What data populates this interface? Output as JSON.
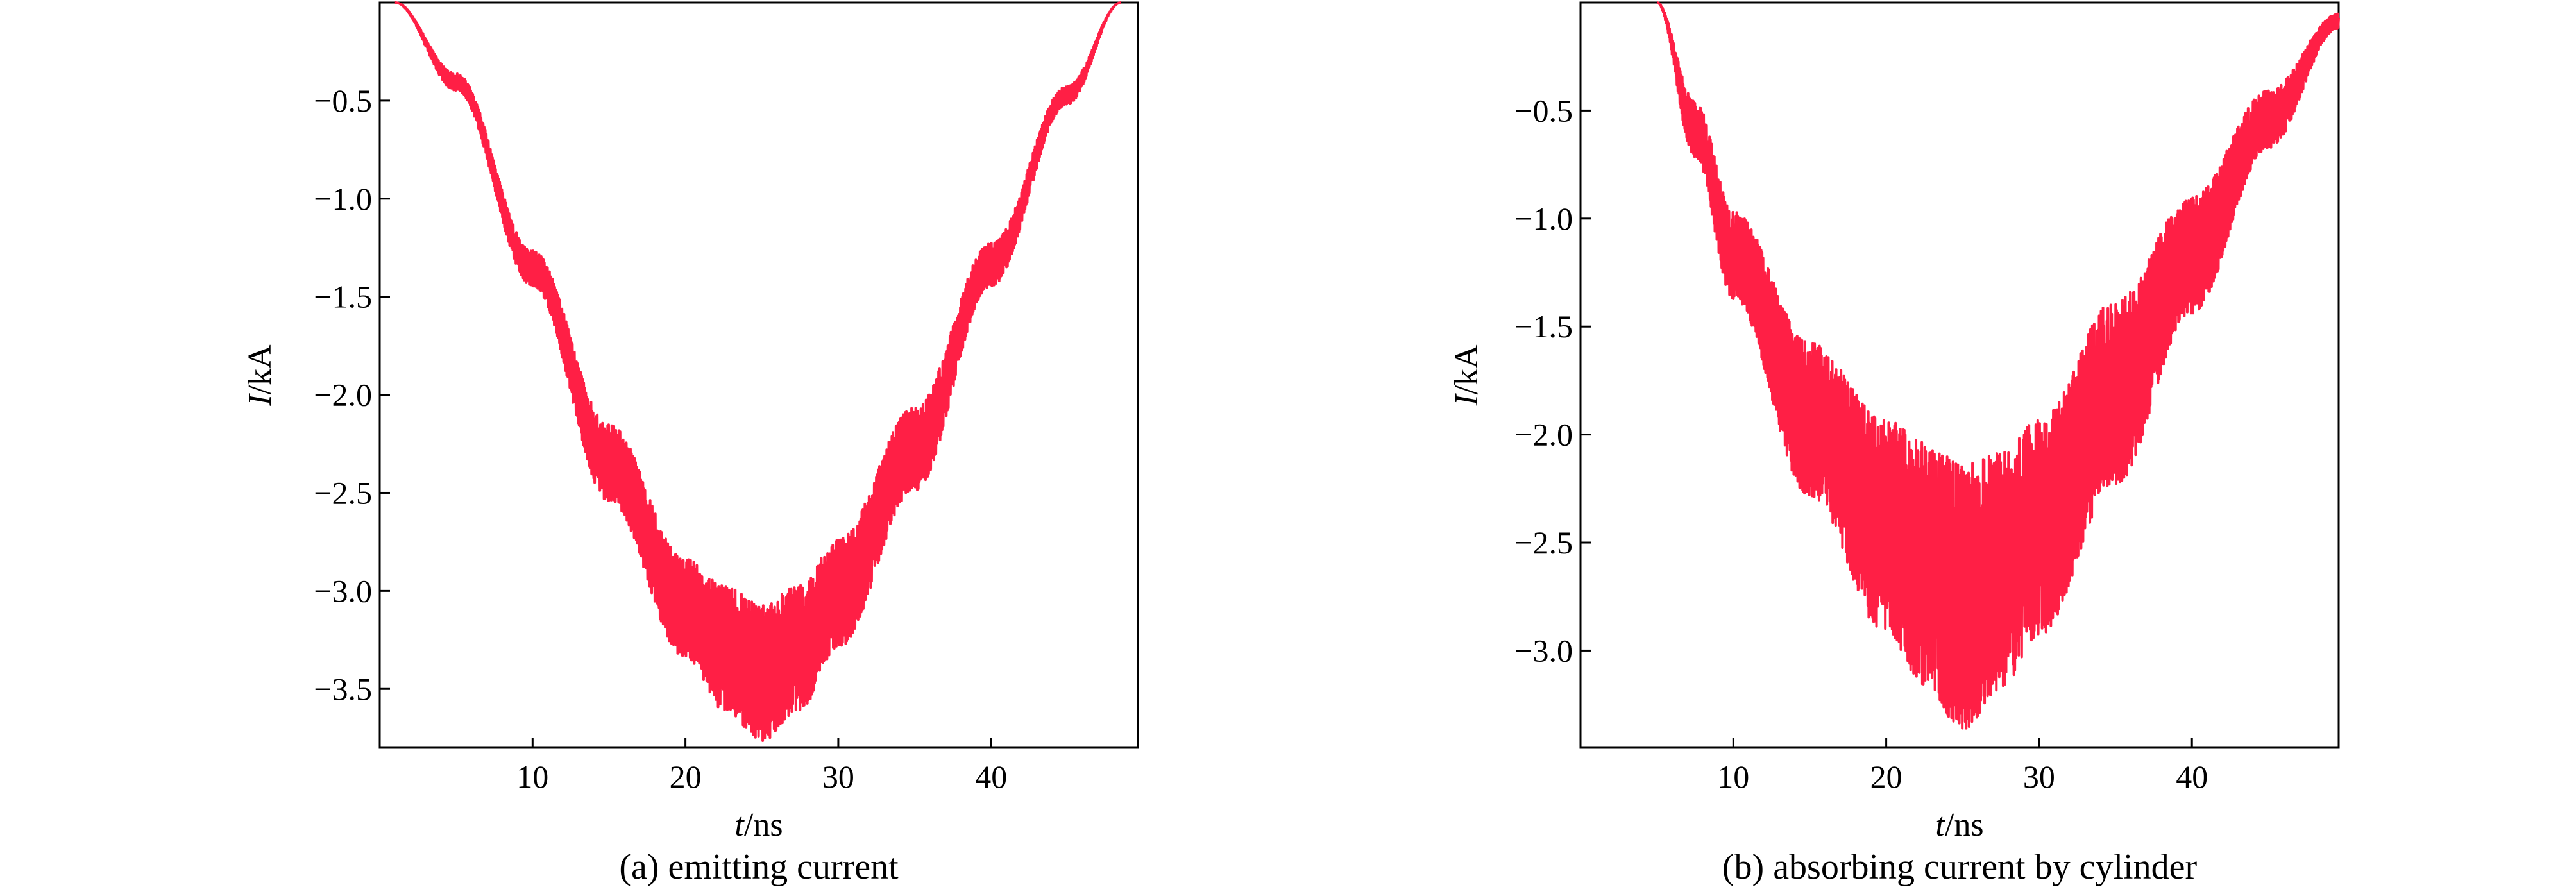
{
  "chart_data": [
    {
      "type": "line",
      "caption": "(a) emitting current",
      "xlabel_var": "t",
      "xlabel_unit": "/ns",
      "ylabel_var": "I",
      "ylabel_unit": "/kA",
      "xlim": [
        0,
        49.6
      ],
      "ylim": [
        -3.8,
        0
      ],
      "xticks": [
        10,
        20,
        30,
        40
      ],
      "yticks": [
        -0.5,
        -1.0,
        -1.5,
        -2.0,
        -2.5,
        -3.0,
        -3.5
      ],
      "ytick_labels": [
        "−0.5",
        "−1.0",
        "−1.5",
        "−2.0",
        "−2.5",
        "−3.0",
        "−3.5"
      ],
      "color": "#ff1f45",
      "series": [
        {
          "x": [
            1.0,
            5.0,
            10.0,
            15.0,
            20.0,
            22.5,
            25.0,
            27.5,
            30.0,
            35.0,
            40.0,
            45.0,
            48.5
          ],
          "upper": [
            0.0,
            -0.36,
            -1.26,
            -2.14,
            -2.82,
            -2.95,
            -3.05,
            -2.95,
            -2.72,
            -2.05,
            -1.22,
            -0.42,
            0.0
          ],
          "lower": [
            0.0,
            -0.45,
            -1.45,
            -2.55,
            -3.35,
            -3.62,
            -3.78,
            -3.62,
            -3.3,
            -2.5,
            -1.45,
            -0.52,
            0.0
          ]
        }
      ]
    },
    {
      "type": "line",
      "caption": "(b) absorbing current by cylinder",
      "xlabel_var": "t",
      "xlabel_unit": "/ns",
      "ylabel_var": "I",
      "ylabel_unit": "/kA",
      "xlim": [
        0,
        49.6
      ],
      "ylim": [
        -3.45,
        0
      ],
      "xticks": [
        10,
        20,
        30,
        40
      ],
      "yticks": [
        -0.5,
        -1.0,
        -1.5,
        -2.0,
        -2.5,
        -3.0
      ],
      "ytick_labels": [
        "−0.5",
        "−1.0",
        "−1.5",
        "−2.0",
        "−2.5",
        "−3.0"
      ],
      "color": "#ff1f45",
      "series": [
        {
          "x": [
            5.0,
            7.5,
            10.0,
            15.0,
            20.0,
            22.5,
            25.0,
            27.5,
            30.0,
            35.0,
            40.0,
            45.0,
            49.6
          ],
          "upper": [
            0.0,
            -0.45,
            -0.95,
            -1.55,
            -1.9,
            -2.0,
            -2.1,
            -2.05,
            -1.9,
            -1.35,
            -0.88,
            -0.4,
            -0.05
          ],
          "lower": [
            0.0,
            -0.72,
            -1.38,
            -2.3,
            -2.95,
            -3.18,
            -3.4,
            -3.2,
            -2.95,
            -2.25,
            -1.45,
            -0.68,
            -0.12
          ]
        }
      ]
    }
  ]
}
